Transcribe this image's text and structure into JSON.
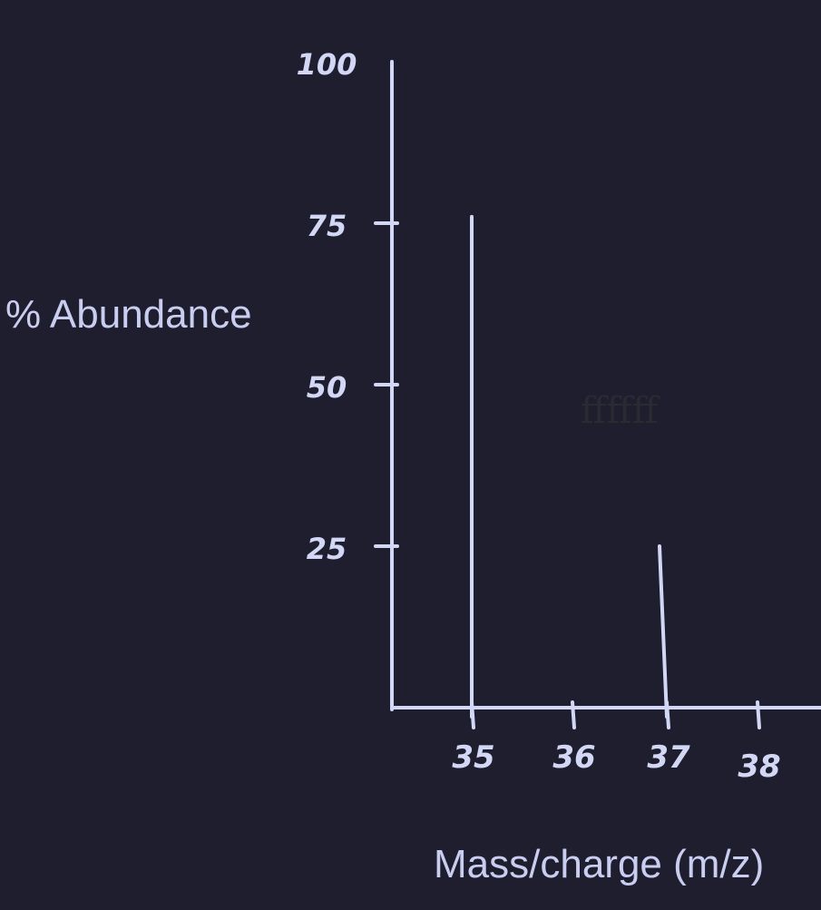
{
  "colors": {
    "background": "#1f1e2e",
    "ink": "#d3d7f6",
    "faint_text": "#2a2a33"
  },
  "chart_data": {
    "type": "bar",
    "xlabel": "Mass/charge (m/z)",
    "ylabel": "% Abundance",
    "ylim": [
      0,
      100
    ],
    "y_ticks": [
      "25",
      "50",
      "75",
      "100"
    ],
    "x_ticks": [
      "35",
      "36",
      "37",
      "38"
    ],
    "categories": [
      "35",
      "36",
      "37",
      "38"
    ],
    "values": [
      76,
      0,
      25,
      0
    ],
    "grid": false,
    "annotations": [
      "ffffff"
    ]
  }
}
